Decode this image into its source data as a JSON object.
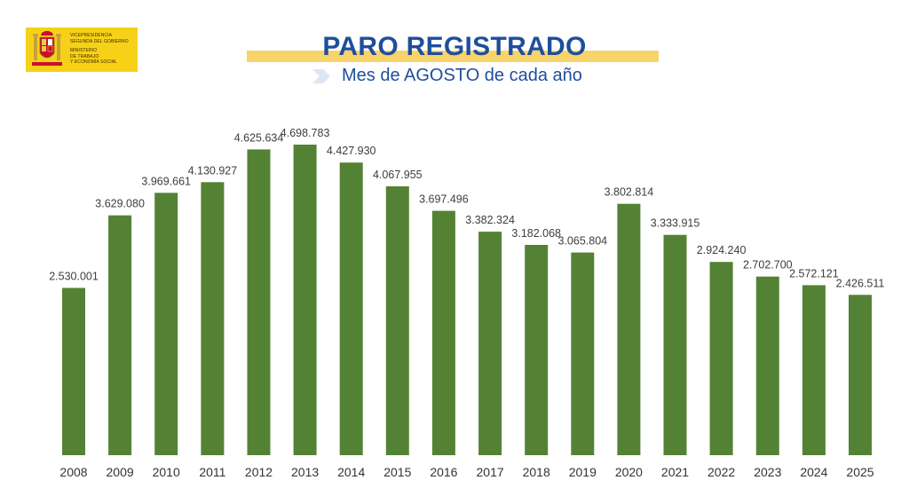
{
  "logo": {
    "lines": [
      "VICEPRESIDENCIA",
      "SEGUNDA DEL GOBIERNO",
      "MINISTERIO",
      "DE TRABAJO",
      "Y ECONOMÍA SOCIAL"
    ],
    "background_color": "#f7d117"
  },
  "title": "PARO REGISTRADO",
  "subtitle": "Mes de AGOSTO de cada año",
  "colors": {
    "bar": "#548235",
    "title": "#1f4e9c",
    "title_band": "#f7d36a"
  },
  "chart_data": {
    "type": "bar",
    "title": "PARO REGISTRADO",
    "subtitle": "Mes de AGOSTO de cada año",
    "xlabel": "",
    "ylabel": "",
    "categories": [
      "2008",
      "2009",
      "2010",
      "2011",
      "2012",
      "2013",
      "2014",
      "2015",
      "2016",
      "2017",
      "2018",
      "2019",
      "2020",
      "2021",
      "2022",
      "2023",
      "2024",
      "2025"
    ],
    "values": [
      2530001,
      3629080,
      3969661,
      4130927,
      4625634,
      4698783,
      4427930,
      4067955,
      3697496,
      3382324,
      3182068,
      3065804,
      3802814,
      3333915,
      2924240,
      2702700,
      2572121,
      2426511
    ],
    "data_labels": [
      "2.530.001",
      "3.629.080",
      "3.969.661",
      "4.130.927",
      "4.625.634",
      "4.698.783",
      "4.427.930",
      "4.067.955",
      "3.697.496",
      "3.382.324",
      "3.182.068",
      "3.065.804",
      "3.802.814",
      "3.333.915",
      "2.924.240",
      "2.702.700",
      "2.572.121",
      "2.426.511"
    ],
    "ylim": [
      0,
      4698783
    ],
    "grid": false,
    "legend": "none",
    "y_axis_visible": false
  }
}
